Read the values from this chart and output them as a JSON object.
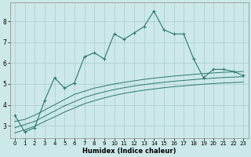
{
  "xlabel": "Humidex (Indice chaleur)",
  "bg_color": "#cce8e8",
  "grid_color": "#aacccc",
  "line_color": "#2a7a6a",
  "xlim": [
    -0.5,
    23.5
  ],
  "ylim": [
    2.4,
    8.9
  ],
  "xticks": [
    0,
    1,
    2,
    3,
    4,
    5,
    6,
    7,
    8,
    9,
    10,
    11,
    12,
    13,
    14,
    15,
    16,
    17,
    18,
    19,
    20,
    21,
    22,
    23
  ],
  "yticks": [
    3,
    4,
    5,
    6,
    7,
    8
  ],
  "main_x": [
    0,
    1,
    2,
    3,
    4,
    5,
    6,
    7,
    8,
    9,
    10,
    11,
    12,
    13,
    14,
    15,
    16,
    17,
    18,
    19,
    20,
    21,
    22,
    23
  ],
  "main_y": [
    3.5,
    2.7,
    2.9,
    4.2,
    5.3,
    4.8,
    5.05,
    6.3,
    6.5,
    6.2,
    7.4,
    7.15,
    7.45,
    7.75,
    8.5,
    7.6,
    7.4,
    7.4,
    6.2,
    5.3,
    5.7,
    5.7,
    5.6,
    5.4
  ],
  "smooth_high_x": [
    0,
    1,
    2,
    3,
    4,
    5,
    6,
    7,
    8,
    9,
    10,
    11,
    12,
    13,
    14,
    15,
    16,
    17,
    18,
    19,
    20,
    21,
    22,
    23
  ],
  "smooth_high_y": [
    3.2,
    3.3,
    3.5,
    3.75,
    4.0,
    4.25,
    4.5,
    4.65,
    4.8,
    4.9,
    5.0,
    5.08,
    5.15,
    5.22,
    5.28,
    5.33,
    5.38,
    5.42,
    5.46,
    5.5,
    5.53,
    5.56,
    5.58,
    5.6
  ],
  "smooth_mid_x": [
    0,
    1,
    2,
    3,
    4,
    5,
    6,
    7,
    8,
    9,
    10,
    11,
    12,
    13,
    14,
    15,
    16,
    17,
    18,
    19,
    20,
    21,
    22,
    23
  ],
  "smooth_mid_y": [
    2.9,
    3.05,
    3.2,
    3.45,
    3.7,
    3.95,
    4.15,
    4.35,
    4.5,
    4.62,
    4.73,
    4.82,
    4.9,
    4.97,
    5.03,
    5.08,
    5.13,
    5.17,
    5.21,
    5.25,
    5.28,
    5.31,
    5.33,
    5.35
  ],
  "smooth_low_x": [
    0,
    1,
    2,
    3,
    4,
    5,
    6,
    7,
    8,
    9,
    10,
    11,
    12,
    13,
    14,
    15,
    16,
    17,
    18,
    19,
    20,
    21,
    22,
    23
  ],
  "smooth_low_y": [
    2.65,
    2.8,
    2.97,
    3.2,
    3.42,
    3.65,
    3.85,
    4.05,
    4.2,
    4.33,
    4.45,
    4.55,
    4.63,
    4.7,
    4.76,
    4.82,
    4.87,
    4.91,
    4.95,
    4.99,
    5.02,
    5.05,
    5.07,
    5.09
  ]
}
